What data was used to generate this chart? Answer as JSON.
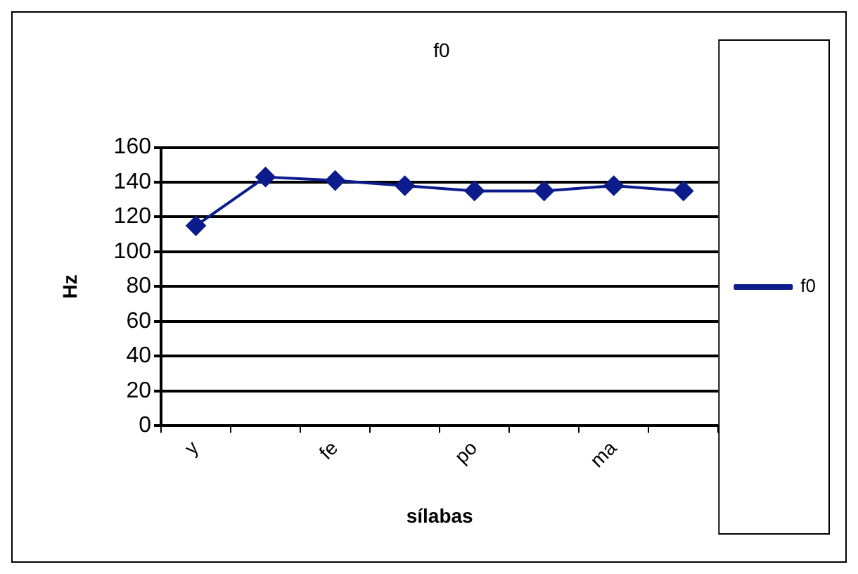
{
  "chart_data": {
    "type": "line",
    "title": "f0",
    "xlabel": "sílabas",
    "ylabel": "Hz",
    "categories": [
      "y",
      null,
      "fe",
      null,
      "po",
      null,
      "ma",
      null
    ],
    "series": [
      {
        "name": "f0",
        "color": "#0c1c8c",
        "values": [
          115,
          143,
          141,
          138,
          135,
          135,
          138,
          135
        ]
      }
    ],
    "ylim": [
      0,
      160
    ],
    "yticks": [
      0,
      20,
      40,
      60,
      80,
      100,
      120,
      140,
      160
    ],
    "grid": "y",
    "legend": "right",
    "marker": "diamond",
    "line_style": "solid"
  }
}
